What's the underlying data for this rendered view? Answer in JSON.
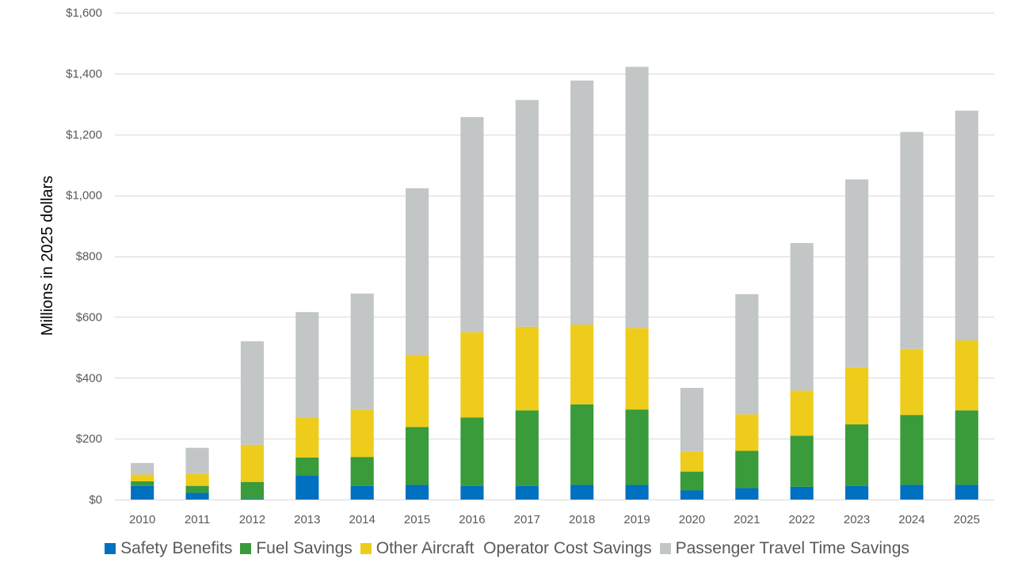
{
  "chart_data": {
    "type": "bar",
    "stacked": true,
    "title": "",
    "xlabel": "",
    "ylabel": "Millions in 2025 dollars",
    "ylim": [
      0,
      1600
    ],
    "y_ticks": [
      0,
      200,
      400,
      600,
      800,
      1000,
      1200,
      1400,
      1600
    ],
    "y_tick_labels": [
      "$0",
      "$200",
      "$400",
      "$600",
      "$800",
      "$1,000",
      "$1,200",
      "$1,400",
      "$1,600"
    ],
    "grid": true,
    "legend_position": "bottom",
    "categories": [
      "2010",
      "2011",
      "2012",
      "2013",
      "2014",
      "2015",
      "2016",
      "2017",
      "2018",
      "2019",
      "2020",
      "2021",
      "2022",
      "2023",
      "2024",
      "2025"
    ],
    "series": [
      {
        "name": "Safety Benefits",
        "color": "#0070C0",
        "values": [
          45,
          22,
          3,
          78,
          45,
          48,
          45,
          45,
          48,
          48,
          30,
          38,
          42,
          45,
          48,
          48
        ]
      },
      {
        "name": "Fuel Savings",
        "color": "#3A9B3A",
        "values": [
          15,
          23,
          55,
          60,
          95,
          190,
          225,
          248,
          265,
          248,
          62,
          122,
          168,
          202,
          230,
          245
        ]
      },
      {
        "name": "Other Aircraft  Operator Cost Savings",
        "color": "#EECC1C",
        "values": [
          22,
          40,
          122,
          130,
          155,
          237,
          280,
          275,
          262,
          268,
          65,
          120,
          148,
          188,
          217,
          230
        ]
      },
      {
        "name": "Passenger Travel Time Savings",
        "color": "#C3C6C7",
        "values": [
          38,
          85,
          340,
          348,
          382,
          548,
          707,
          745,
          802,
          858,
          210,
          395,
          485,
          617,
          713,
          755
        ]
      }
    ]
  }
}
